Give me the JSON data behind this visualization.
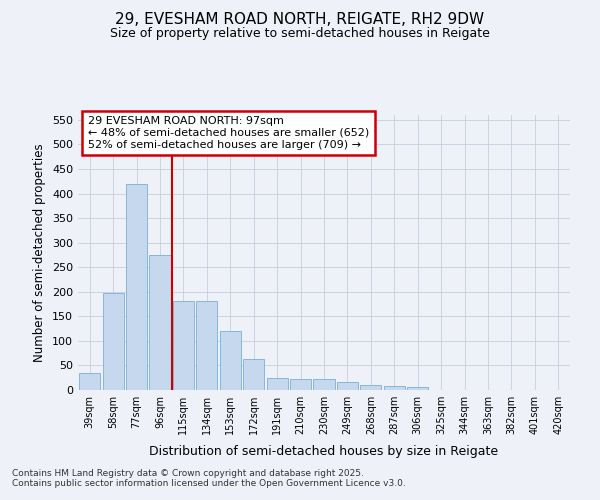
{
  "title1": "29, EVESHAM ROAD NORTH, REIGATE, RH2 9DW",
  "title2": "Size of property relative to semi-detached houses in Reigate",
  "xlabel": "Distribution of semi-detached houses by size in Reigate",
  "ylabel": "Number of semi-detached properties",
  "categories": [
    "39sqm",
    "58sqm",
    "77sqm",
    "96sqm",
    "115sqm",
    "134sqm",
    "153sqm",
    "172sqm",
    "191sqm",
    "210sqm",
    "230sqm",
    "249sqm",
    "268sqm",
    "287sqm",
    "306sqm",
    "325sqm",
    "344sqm",
    "363sqm",
    "382sqm",
    "401sqm",
    "420sqm"
  ],
  "values": [
    35,
    197,
    420,
    275,
    181,
    181,
    120,
    63,
    25,
    22,
    22,
    17,
    10,
    9,
    6,
    1,
    1,
    0,
    0,
    0,
    0
  ],
  "bar_color": "#c5d8ee",
  "bar_edge_color": "#7aafd4",
  "vline_x_index": 3.5,
  "annotation_title": "29 EVESHAM ROAD NORTH: 97sqm",
  "annotation_line1": "← 48% of semi-detached houses are smaller (652)",
  "annotation_line2": "52% of semi-detached houses are larger (709) →",
  "vline_color": "#cc0000",
  "ylim": [
    0,
    560
  ],
  "yticks": [
    0,
    50,
    100,
    150,
    200,
    250,
    300,
    350,
    400,
    450,
    500,
    550
  ],
  "footer1": "Contains HM Land Registry data © Crown copyright and database right 2025.",
  "footer2": "Contains public sector information licensed under the Open Government Licence v3.0.",
  "bg_color": "#eef2f8",
  "grid_color": "#c5cfe0",
  "title1_fontsize": 11,
  "title2_fontsize": 9
}
